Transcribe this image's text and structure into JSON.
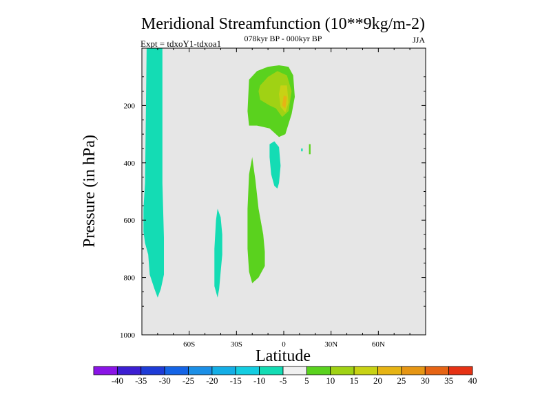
{
  "chart_data": {
    "type": "contour",
    "title": "Meridional Streamfunction (10**9kg/m-2)",
    "subtitle_left": "Expt = tdxoY1-tdxoa1",
    "subtitle_center": "078kyr BP - 000kyr BP",
    "subtitle_right": "JJA",
    "xlabel": "Latitude",
    "ylabel": "Pressure (in hPa)",
    "xlim": [
      -90,
      90
    ],
    "ylim": [
      1000,
      0
    ],
    "x_ticks": [
      {
        "value": -60,
        "label": "60S"
      },
      {
        "value": -30,
        "label": "30S"
      },
      {
        "value": 0,
        "label": "0"
      },
      {
        "value": 30,
        "label": "30N"
      },
      {
        "value": 60,
        "label": "60N"
      }
    ],
    "y_ticks": [
      {
        "value": 200,
        "label": "200"
      },
      {
        "value": 400,
        "label": "400"
      },
      {
        "value": 600,
        "label": "600"
      },
      {
        "value": 800,
        "label": "800"
      },
      {
        "value": 1000,
        "label": "1000"
      }
    ],
    "background_color": "#e6e6e6",
    "colorbar": {
      "labels": [
        "-40",
        "-35",
        "-30",
        "-25",
        "-20",
        "-15",
        "-10",
        "-5",
        "5",
        "10",
        "15",
        "20",
        "25",
        "30",
        "35",
        "40"
      ],
      "colors": [
        "#8a14e6",
        "#3c1ed2",
        "#1e3cd7",
        "#1464e6",
        "#1b8fe6",
        "#14aee6",
        "#14cde1",
        "#14dcb4",
        "#f0f0f0",
        "#5ad21e",
        "#a0d214",
        "#c8d214",
        "#e6b414",
        "#e69614",
        "#e66414",
        "#e63214"
      ]
    },
    "regions": [
      {
        "name": "south-polar-negative",
        "level": "-10 to -5",
        "color": "#14dcb4",
        "points": [
          [
            -87,
            0
          ],
          [
            -77,
            0
          ],
          [
            -77,
            470
          ],
          [
            -76,
            660
          ],
          [
            -76,
            790
          ],
          [
            -78,
            840
          ],
          [
            -80,
            870
          ],
          [
            -82,
            840
          ],
          [
            -85,
            790
          ],
          [
            -86,
            720
          ],
          [
            -88,
            680
          ],
          [
            -89,
            640
          ],
          [
            -89,
            560
          ],
          [
            -88,
            470
          ],
          [
            -87,
            0
          ]
        ]
      },
      {
        "name": "southern-negative-lobe",
        "level": "-10 to -5",
        "color": "#14dcb4",
        "points": [
          [
            -42,
            560
          ],
          [
            -40,
            590
          ],
          [
            -39,
            650
          ],
          [
            -39,
            720
          ],
          [
            -40,
            780
          ],
          [
            -41,
            840
          ],
          [
            -42,
            870
          ],
          [
            -44,
            830
          ],
          [
            -44,
            700
          ],
          [
            -43,
            600
          ],
          [
            -42,
            560
          ]
        ]
      },
      {
        "name": "upper-positive-cell",
        "level": "5 to 10",
        "color": "#5ad21e",
        "points": [
          [
            -22,
            110
          ],
          [
            -17,
            80
          ],
          [
            -10,
            65
          ],
          [
            -3,
            60
          ],
          [
            3,
            65
          ],
          [
            6,
            95
          ],
          [
            7,
            170
          ],
          [
            5,
            230
          ],
          [
            1,
            300
          ],
          [
            -3,
            310
          ],
          [
            -9,
            280
          ],
          [
            -17,
            270
          ],
          [
            -22,
            270
          ],
          [
            -23,
            220
          ],
          [
            -22,
            110
          ]
        ]
      },
      {
        "name": "upper-positive-core",
        "level": "10 to 15",
        "color": "#a0d214",
        "points": [
          [
            -15,
            130
          ],
          [
            -10,
            100
          ],
          [
            -4,
            80
          ],
          [
            2,
            95
          ],
          [
            5,
            150
          ],
          [
            3,
            220
          ],
          [
            -1,
            240
          ],
          [
            -5,
            210
          ],
          [
            -9,
            200
          ],
          [
            -15,
            180
          ],
          [
            -16,
            150
          ],
          [
            -15,
            130
          ]
        ]
      },
      {
        "name": "upper-positive-peak",
        "level": "15 to 20",
        "color": "#c8d214",
        "points": [
          [
            -2,
            130
          ],
          [
            2,
            130
          ],
          [
            3,
            190
          ],
          [
            1,
            225
          ],
          [
            -2,
            205
          ],
          [
            -3,
            160
          ],
          [
            -2,
            130
          ]
        ]
      },
      {
        "name": "upper-positive-max",
        "level": "20 to 25",
        "color": "#e6b414",
        "points": [
          [
            0,
            165
          ],
          [
            2,
            170
          ],
          [
            1,
            210
          ],
          [
            -1,
            200
          ],
          [
            0,
            165
          ]
        ]
      },
      {
        "name": "subtropical-negative-tongue",
        "level": "-10 to -5",
        "color": "#14dcb4",
        "points": [
          [
            -9,
            335
          ],
          [
            -6,
            325
          ],
          [
            -3,
            345
          ],
          [
            -2,
            410
          ],
          [
            -3,
            470
          ],
          [
            -4,
            490
          ],
          [
            -6,
            480
          ],
          [
            -8,
            440
          ],
          [
            -9,
            380
          ],
          [
            -9,
            335
          ]
        ]
      },
      {
        "name": "lower-positive-lobe",
        "level": "5 to 10",
        "color": "#5ad21e",
        "points": [
          [
            -20,
            380
          ],
          [
            -18,
            460
          ],
          [
            -16,
            560
          ],
          [
            -13,
            650
          ],
          [
            -12,
            710
          ],
          [
            -12,
            760
          ],
          [
            -16,
            800
          ],
          [
            -20,
            820
          ],
          [
            -22,
            780
          ],
          [
            -23,
            700
          ],
          [
            -23,
            560
          ],
          [
            -22,
            440
          ],
          [
            -20,
            380
          ]
        ]
      },
      {
        "name": "small-positive-sliver",
        "level": "5 to 10",
        "color": "#5ad21e",
        "points": [
          [
            16,
            335
          ],
          [
            17,
            335
          ],
          [
            17,
            370
          ],
          [
            16,
            370
          ],
          [
            16,
            335
          ]
        ]
      },
      {
        "name": "small-negative-speck",
        "level": "-10 to -5",
        "color": "#14dcb4",
        "points": [
          [
            11,
            350
          ],
          [
            12,
            350
          ],
          [
            12,
            360
          ],
          [
            11,
            360
          ],
          [
            11,
            350
          ]
        ]
      }
    ]
  }
}
